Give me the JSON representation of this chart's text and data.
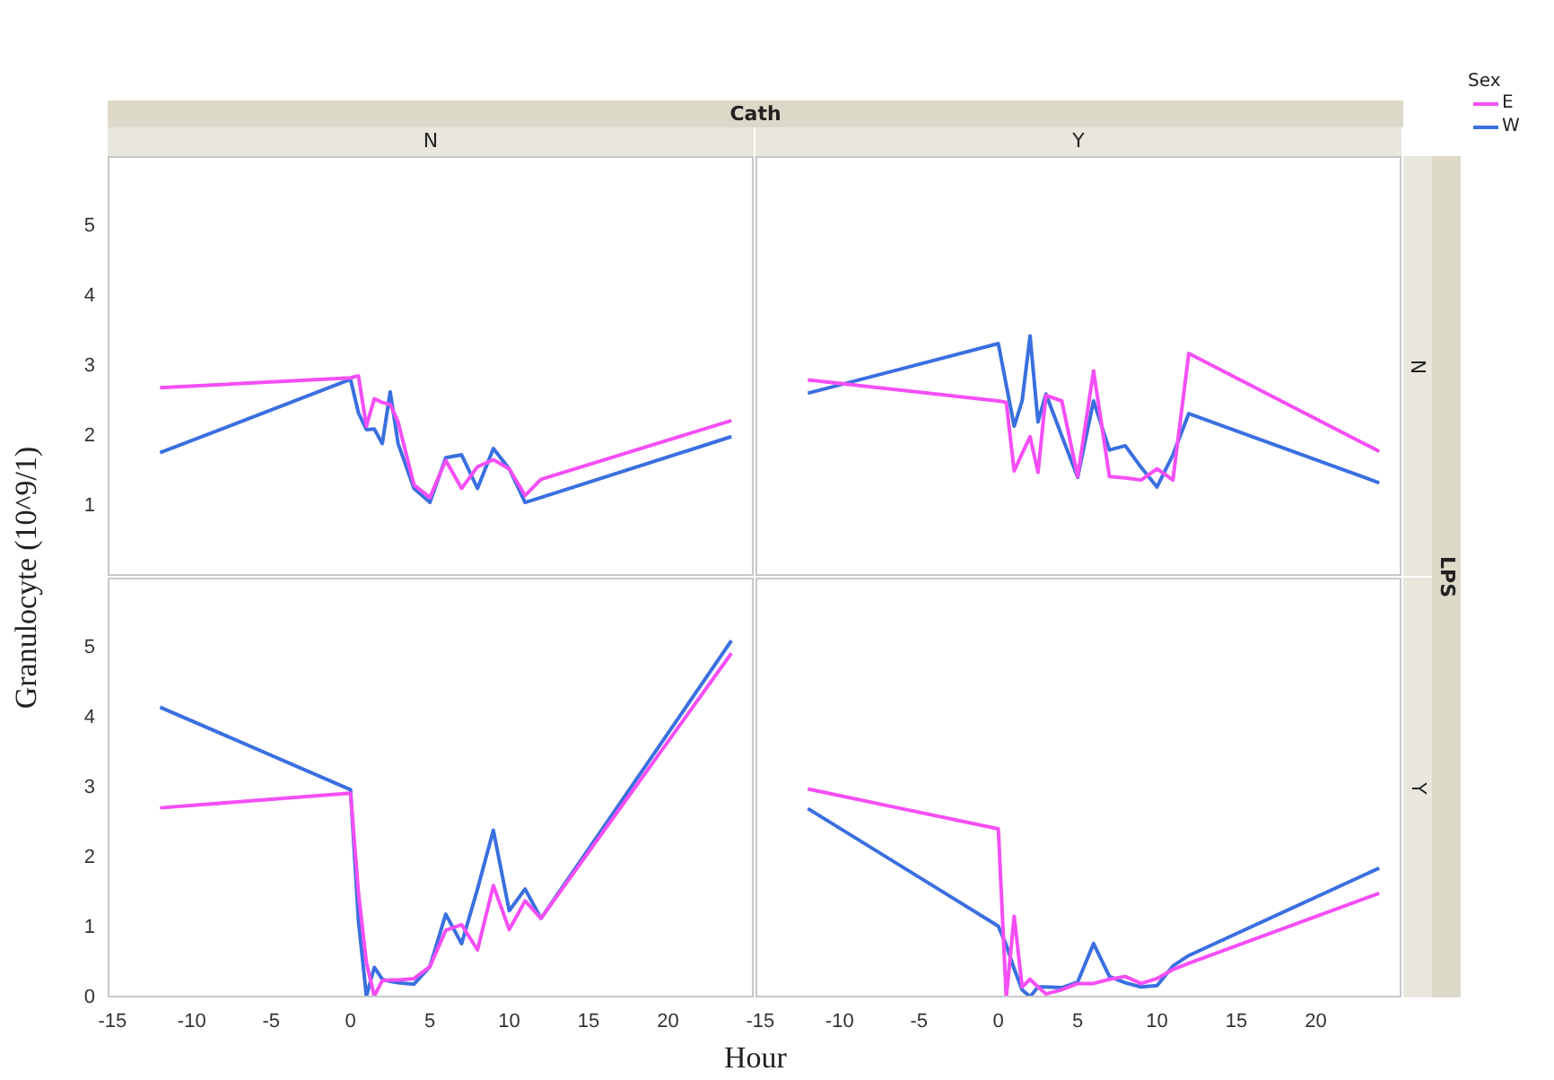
{
  "chart_data": [
    {
      "type": "line",
      "title": "N",
      "ylabel": "Granulocyte (10^9/1)",
      "annotations": [
        "Cath"
      ],
      "legend": "top right",
      "legend_title": "Sex",
      "xlim": [
        -15.3,
        25.4
      ],
      "ylim": [
        0,
        6
      ],
      "xticks": [
        -15,
        -10,
        -5,
        0,
        5,
        10,
        15,
        20
      ],
      "yticks": [
        1,
        2,
        3,
        4,
        5
      ],
      "tick_labels": "y",
      "grid": false,
      "x": [
        -12,
        0,
        0.5,
        1,
        1.5,
        2,
        2.5,
        3,
        4,
        5,
        6,
        7,
        8,
        9,
        10,
        11,
        12,
        24
      ],
      "series": [
        {
          "name": "E",
          "color": "#f54ef5",
          "values": [
            2.69,
            2.83,
            2.86,
            2.14,
            2.53,
            2.48,
            2.45,
            2.2,
            1.3,
            1.12,
            1.65,
            1.25,
            1.56,
            1.66,
            1.53,
            1.15,
            1.38,
            2.22
          ]
        },
        {
          "name": "W",
          "color": "#3a6fe0",
          "values": [
            1.76,
            2.81,
            2.33,
            2.09,
            2.1,
            1.89,
            2.63,
            1.89,
            1.25,
            1.05,
            1.69,
            1.73,
            1.25,
            1.82,
            1.53,
            1.05,
            1.12,
            1.99
          ]
        }
      ]
    },
    {
      "type": "line",
      "title": "Y",
      "y2label": "N",
      "annotations": [
        "LPS"
      ],
      "xlim": [
        -15.3,
        25.4
      ],
      "ylim": [
        0,
        6
      ],
      "xticks": [
        -15,
        -10,
        -5,
        0,
        5,
        10,
        15,
        20
      ],
      "yticks": [
        1,
        2,
        3,
        4,
        5
      ],
      "tick_labels": false,
      "grid": false,
      "x": [
        -12,
        0,
        0.5,
        1,
        1.5,
        2,
        2.5,
        3,
        4,
        5,
        6,
        7,
        8,
        9,
        10,
        11,
        12,
        24
      ],
      "series": [
        {
          "color": "#f54ef5",
          "values": [
            2.8,
            2.5,
            2.48,
            1.5,
            1.75,
            1.99,
            1.48,
            2.58,
            2.5,
            1.42,
            2.93,
            1.42,
            1.4,
            1.37,
            1.53,
            1.37,
            3.18,
            1.78
          ]
        },
        {
          "color": "#3a6fe0",
          "values": [
            2.61,
            3.32,
            2.73,
            2.14,
            2.5,
            3.43,
            2.2,
            2.6,
            2.0,
            1.41,
            2.5,
            1.8,
            1.86,
            1.55,
            1.27,
            1.73,
            2.32,
            1.33
          ]
        }
      ]
    },
    {
      "type": "line",
      "xlabel": "Hour",
      "xlim": [
        -15.3,
        25.4
      ],
      "ylim": [
        0,
        6
      ],
      "xticks": [
        -15,
        -10,
        -5,
        0,
        5,
        10,
        15,
        20
      ],
      "yticks": [
        0,
        1,
        2,
        3,
        4,
        5
      ],
      "grid": false,
      "x": [
        -12,
        0,
        0.5,
        1,
        1.5,
        2,
        2.5,
        3,
        4,
        5,
        6,
        7,
        8,
        9,
        10,
        11,
        12,
        24
      ],
      "series": [
        {
          "color": "#f54ef5",
          "values": [
            2.71,
            2.92,
            1.5,
            0.5,
            0.02,
            0.24,
            0.25,
            0.25,
            0.27,
            0.44,
            0.96,
            1.04,
            0.68,
            1.6,
            0.97,
            1.38,
            1.13,
            4.92
          ]
        },
        {
          "color": "#3a6fe0",
          "values": [
            4.15,
            2.97,
            1.1,
            0.02,
            0.43,
            0.26,
            0.23,
            0.21,
            0.19,
            0.44,
            1.19,
            0.77,
            1.55,
            2.39,
            1.24,
            1.55,
            1.13,
            5.1
          ]
        }
      ]
    },
    {
      "type": "line",
      "y2label": "Y",
      "xlim": [
        -15.3,
        25.4
      ],
      "ylim": [
        0,
        6
      ],
      "xticks": [
        -15,
        -10,
        -5,
        0,
        5,
        10,
        15,
        20
      ],
      "yticks": [
        0,
        1,
        2,
        3,
        4,
        5
      ],
      "tick_labels": "x",
      "grid": false,
      "x": [
        -12,
        0,
        0.5,
        1,
        1.5,
        2,
        2.5,
        3,
        4,
        5,
        6,
        7,
        8,
        9,
        10,
        11,
        12,
        24
      ],
      "series": [
        {
          "color": "#f54ef5",
          "values": [
            2.98,
            2.41,
            0,
            1.16,
            0.15,
            0.26,
            0.15,
            0.05,
            0.11,
            0.2,
            0.2,
            0.26,
            0.3,
            0.2,
            0.27,
            0.4,
            0.49,
            1.49
          ]
        },
        {
          "color": "#3a6fe0",
          "values": [
            2.7,
            1.02,
            0.75,
            0.41,
            0.11,
            0.01,
            0.15,
            0.15,
            0.14,
            0.22,
            0.77,
            0.3,
            0.21,
            0.15,
            0.17,
            0.45,
            0.6,
            1.85
          ]
        }
      ]
    }
  ]
}
